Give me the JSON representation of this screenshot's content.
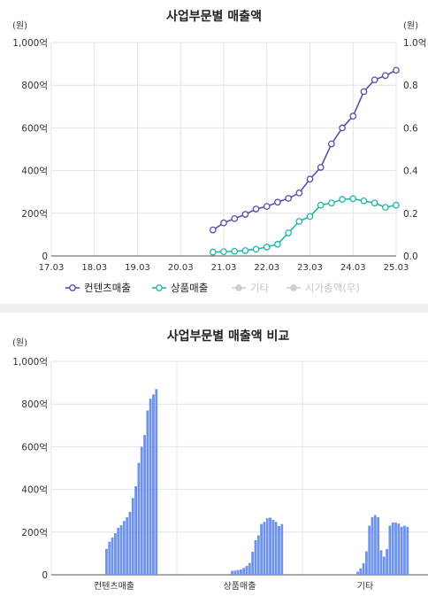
{
  "chart_data": [
    {
      "type": "line",
      "title": "사업부문별 매출액",
      "y_unit_left": "(원)",
      "y_unit_right": "(원)",
      "y_ticks_left": [
        "0",
        "200억",
        "400억",
        "600억",
        "800억",
        "1,000억"
      ],
      "y_ticks_right": [
        "0.0",
        "0.2",
        "0.4",
        "0.6",
        "0.8",
        "1.0억"
      ],
      "ylim": [
        0,
        1000
      ],
      "x_ticks": [
        "17.03",
        "18.03",
        "19.03",
        "20.03",
        "21.03",
        "22.03",
        "23.03",
        "24.03",
        "25.03"
      ],
      "x_range_quarters": [
        0,
        32
      ],
      "grid": true,
      "legend_position": "bottom",
      "series": [
        {
          "name": "컨텐츠매출",
          "color": "#5a4fa8",
          "active": true,
          "x": [
            "20.12",
            "21.03",
            "21.06",
            "21.09",
            "21.12",
            "22.03",
            "22.06",
            "22.09",
            "22.12",
            "23.03",
            "23.06",
            "23.09",
            "23.12",
            "24.03",
            "24.06",
            "24.09",
            "24.12",
            "25.03"
          ],
          "values": [
            122,
            155,
            175,
            195,
            220,
            232,
            252,
            270,
            295,
            360,
            415,
            525,
            600,
            655,
            770,
            825,
            845,
            870
          ]
        },
        {
          "name": "상품매출",
          "color": "#1cb8a6",
          "active": true,
          "x": [
            "20.12",
            "21.03",
            "21.06",
            "21.09",
            "21.12",
            "22.03",
            "22.06",
            "22.09",
            "22.12",
            "23.03",
            "23.06",
            "23.09",
            "23.12",
            "24.03",
            "24.06",
            "24.09",
            "24.12",
            "25.03"
          ],
          "values": [
            18,
            20,
            22,
            25,
            32,
            42,
            55,
            108,
            162,
            185,
            238,
            248,
            265,
            268,
            258,
            248,
            228,
            238
          ]
        },
        {
          "name": "기타",
          "color": "#c9c9c9",
          "active": false,
          "values": []
        },
        {
          "name": "시가총액(우)",
          "color": "#c9c9c9",
          "active": false,
          "values": []
        }
      ]
    },
    {
      "type": "bar",
      "title": "사업부문별 매출액 비교",
      "y_unit_left": "(원)",
      "y_ticks_left": [
        "0",
        "200억",
        "400억",
        "600억",
        "800억",
        "1,000억"
      ],
      "ylim": [
        0,
        1000
      ],
      "bar_color": "#6f93ea",
      "groups": [
        {
          "name": "컨텐츠매출",
          "values": [
            122,
            155,
            175,
            195,
            220,
            232,
            252,
            270,
            295,
            360,
            415,
            525,
            600,
            655,
            770,
            825,
            845,
            870
          ]
        },
        {
          "name": "상품매출",
          "values": [
            18,
            20,
            22,
            25,
            32,
            42,
            55,
            108,
            162,
            185,
            238,
            248,
            265,
            268,
            258,
            248,
            228,
            238
          ]
        },
        {
          "name": "기타",
          "values": [
            15,
            30,
            55,
            110,
            230,
            270,
            280,
            270,
            115,
            85,
            120,
            230,
            245,
            245,
            240,
            225,
            230,
            225
          ]
        }
      ]
    }
  ]
}
